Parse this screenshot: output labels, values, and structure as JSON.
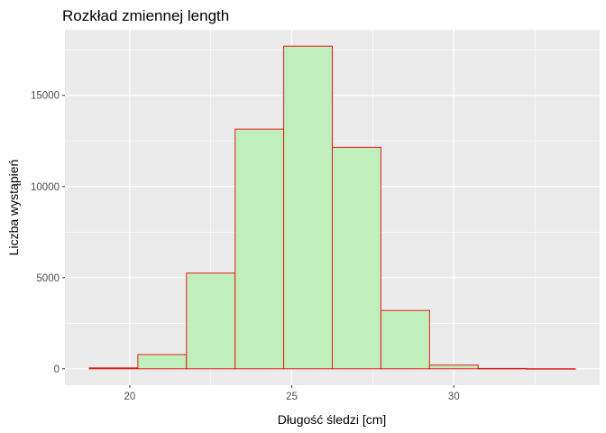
{
  "chart_data": {
    "type": "bar",
    "title": "Rozkład zmiennej length",
    "xlabel": "Długość śledzi [cm]",
    "ylabel": "Liczba wystąpień",
    "bins": [
      {
        "x0": 18.75,
        "x1": 20.25,
        "count": 50
      },
      {
        "x0": 20.25,
        "x1": 21.75,
        "count": 780
      },
      {
        "x0": 21.75,
        "x1": 23.25,
        "count": 5250
      },
      {
        "x0": 23.25,
        "x1": 24.75,
        "count": 13150
      },
      {
        "x0": 24.75,
        "x1": 26.25,
        "count": 17700
      },
      {
        "x0": 26.25,
        "x1": 27.75,
        "count": 12150
      },
      {
        "x0": 27.75,
        "x1": 29.25,
        "count": 3200
      },
      {
        "x0": 29.25,
        "x1": 30.75,
        "count": 200
      },
      {
        "x0": 30.75,
        "x1": 32.25,
        "count": 20
      },
      {
        "x0": 32.25,
        "x1": 33.75,
        "count": 5
      }
    ],
    "xlim": [
      18.0,
      34.5
    ],
    "ylim": [
      -900,
      18600
    ],
    "x_ticks": [
      20,
      25,
      30
    ],
    "x_tick_labels": [
      "20",
      "25",
      "30"
    ],
    "y_ticks": [
      0,
      5000,
      10000,
      15000
    ],
    "y_tick_labels": [
      "0",
      "5000",
      "10000",
      "15000"
    ],
    "grid": true,
    "legend": "none",
    "colors": {
      "bar_fill": "#c0efbc",
      "bar_outline": "#e31a1c",
      "panel_bg": "#ebebeb",
      "grid_major": "#ffffff"
    }
  }
}
